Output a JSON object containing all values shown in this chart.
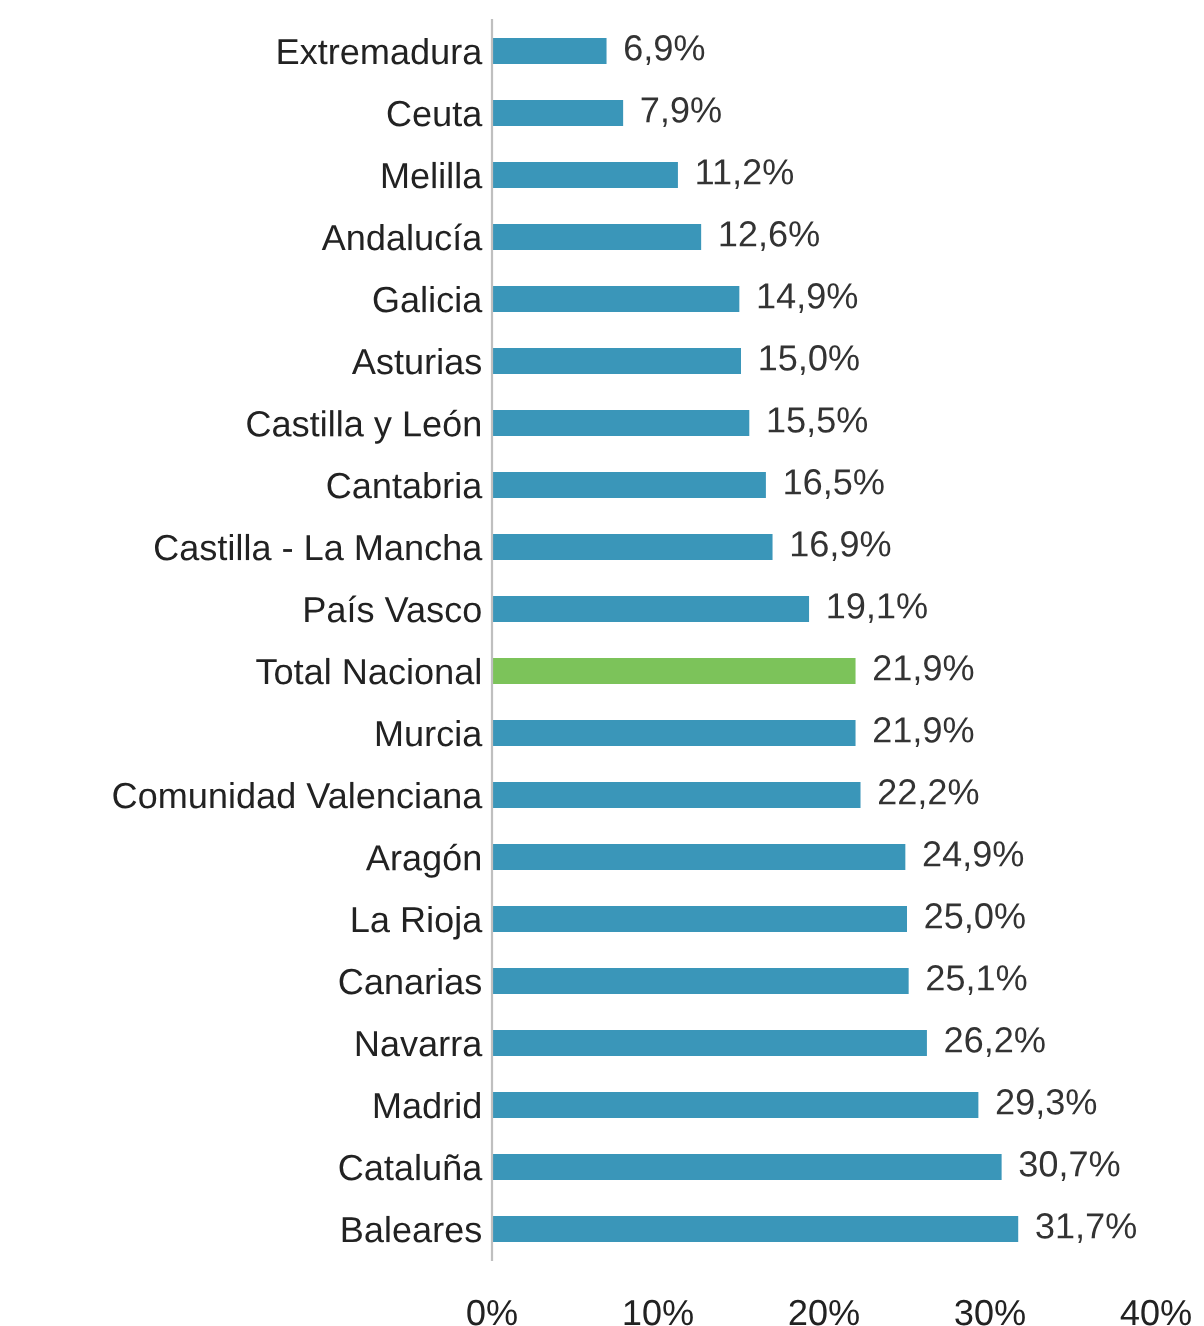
{
  "chart_data": {
    "type": "bar",
    "orientation": "horizontal",
    "categories": [
      "Extremadura",
      "Ceuta",
      "Melilla",
      "Andalucía",
      "Galicia",
      "Asturias",
      "Castilla y León",
      "Cantabria",
      "Castilla - La Mancha",
      "País Vasco",
      "Total Nacional",
      "Murcia",
      "Comunidad Valenciana",
      "Aragón",
      "La Rioja",
      "Canarias",
      "Navarra",
      "Madrid",
      "Cataluña",
      "Baleares"
    ],
    "values": [
      6.9,
      7.9,
      11.2,
      12.6,
      14.9,
      15.0,
      15.5,
      16.5,
      16.9,
      19.1,
      21.9,
      21.9,
      22.2,
      24.9,
      25.0,
      25.1,
      26.2,
      29.3,
      30.7,
      31.7
    ],
    "value_labels": [
      "6,9%",
      "7,9%",
      "11,2%",
      "12,6%",
      "14,9%",
      "15,0%",
      "15,5%",
      "16,5%",
      "16,9%",
      "19,1%",
      "21,9%",
      "21,9%",
      "22,2%",
      "24,9%",
      "25,0%",
      "25,1%",
      "26,2%",
      "29,3%",
      "30,7%",
      "31,7%"
    ],
    "colors": [
      "#3a96b9",
      "#3a96b9",
      "#3a96b9",
      "#3a96b9",
      "#3a96b9",
      "#3a96b9",
      "#3a96b9",
      "#3a96b9",
      "#3a96b9",
      "#3a96b9",
      "#7cc35a",
      "#3a96b9",
      "#3a96b9",
      "#3a96b9",
      "#3a96b9",
      "#3a96b9",
      "#3a96b9",
      "#3a96b9",
      "#3a96b9",
      "#3a96b9"
    ],
    "xlim": [
      0,
      40
    ],
    "xticks": [
      {
        "value": 0,
        "label": "0%"
      },
      {
        "value": 10,
        "label": "10%"
      },
      {
        "value": 20,
        "label": "20%"
      },
      {
        "value": 30,
        "label": "30%"
      },
      {
        "value": 40,
        "label": "40%"
      }
    ],
    "grid": false,
    "legend": false
  }
}
